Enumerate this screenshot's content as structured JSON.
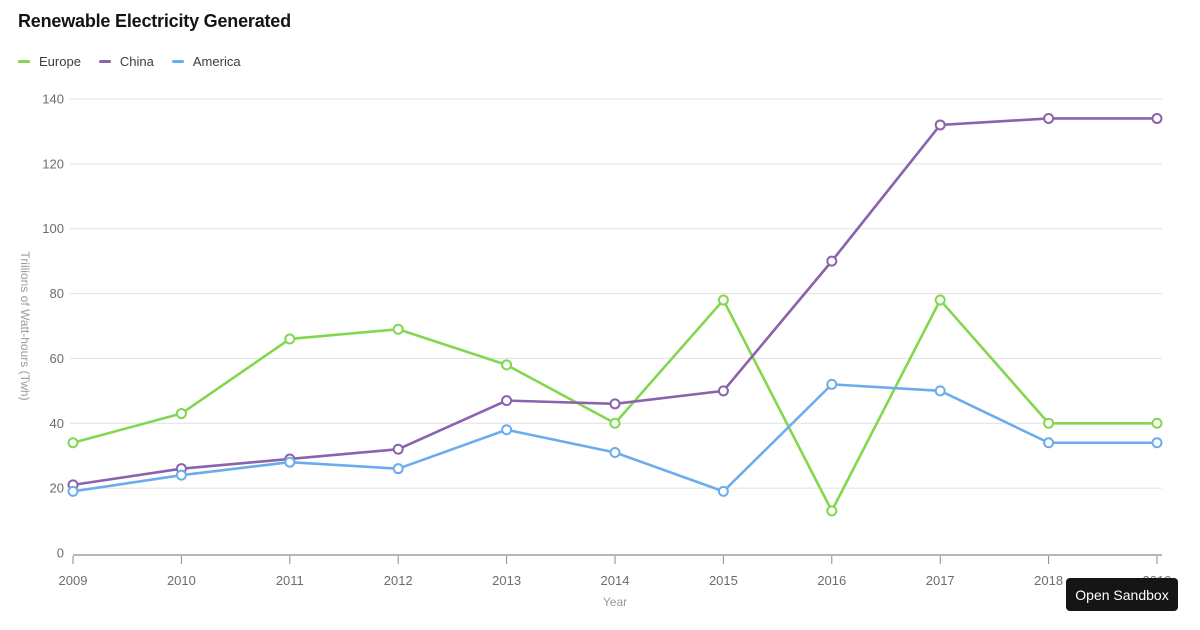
{
  "chart": {
    "title": "Renewable Electricity Generated"
  },
  "chart_data": {
    "type": "line",
    "title": "Renewable Electricity Generated",
    "x": [
      2009,
      2010,
      2011,
      2012,
      2013,
      2014,
      2015,
      2016,
      2017,
      2018,
      2019
    ],
    "series": [
      {
        "name": "Europe",
        "color": "#82d74f",
        "values": [
          34,
          43,
          66,
          69,
          58,
          40,
          78,
          13,
          78,
          40,
          40
        ]
      },
      {
        "name": "China",
        "color": "#8a62ad",
        "values": [
          21,
          26,
          29,
          32,
          47,
          46,
          50,
          90,
          132,
          134,
          134
        ]
      },
      {
        "name": "America",
        "color": "#6badec",
        "values": [
          19,
          24,
          28,
          26,
          38,
          31,
          19,
          52,
          50,
          34,
          34
        ]
      }
    ],
    "xlabel": "Year",
    "ylabel": "Trillions of Watt-hours (Twh)",
    "ylim": [
      0,
      140
    ],
    "yticks": [
      0,
      20,
      40,
      60,
      80,
      100,
      120,
      140
    ],
    "grid": "horizontal",
    "legend_position": "top-left",
    "marker": "open-circle"
  },
  "colors": {
    "grid_line": "#e1e1e1",
    "axis_line": "#8a8a8a",
    "tick_label": "#6d6d6d",
    "axis_title": "#9b9b9b",
    "button_bg": "#151515"
  },
  "sandbox_button": {
    "label": "Open Sandbox"
  }
}
